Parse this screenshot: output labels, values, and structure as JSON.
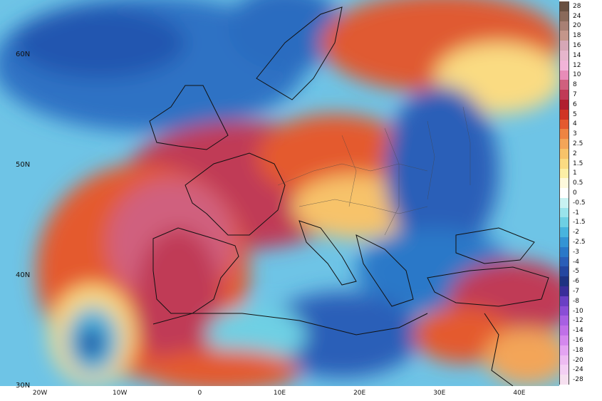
{
  "map": {
    "lat_labels": [
      {
        "text": "60N",
        "lat": 60
      },
      {
        "text": "50N",
        "lat": 50
      },
      {
        "text": "40N",
        "lat": 40
      },
      {
        "text": "30N",
        "lat": 30
      }
    ],
    "lon_labels": [
      {
        "text": "20W",
        "lon": -20
      },
      {
        "text": "10W",
        "lon": -10
      },
      {
        "text": "0",
        "lon": 0
      },
      {
        "text": "10E",
        "lon": 10
      },
      {
        "text": "20E",
        "lon": 20
      },
      {
        "text": "30E",
        "lon": 30
      },
      {
        "text": "40E",
        "lon": 40
      }
    ]
  },
  "colorbar": {
    "levels": [
      "28",
      "24",
      "20",
      "18",
      "16",
      "14",
      "12",
      "10",
      "8",
      "7",
      "6",
      "5",
      "4",
      "3",
      "2.5",
      "2",
      "1.5",
      "1",
      "0.5",
      "0",
      "-0.5",
      "-1",
      "-1.5",
      "-2",
      "-2.5",
      "-3",
      "-4",
      "-5",
      "-6",
      "-7",
      "-8",
      "-10",
      "-12",
      "-14",
      "-16",
      "-18",
      "-20",
      "-24",
      "-28"
    ],
    "colors": [
      "#6a5040",
      "#8a6a5a",
      "#a88074",
      "#c4968a",
      "#d6a7b6",
      "#e6b6cc",
      "#f2b4d8",
      "#e88cb8",
      "#d0607e",
      "#c03a56",
      "#b01e2e",
      "#d03424",
      "#e45a2e",
      "#ee8442",
      "#f3a558",
      "#f7c36a",
      "#fadb82",
      "#fcefa6",
      "#fef9dc",
      "#ffffff",
      "#c8f2f2",
      "#9ae4ec",
      "#6ed0e4",
      "#48b4de",
      "#3494d4",
      "#2a78c8",
      "#2a5eb8",
      "#2446a0",
      "#1e3282",
      "#3a2e9a",
      "#6a40c4",
      "#8a4ed6",
      "#a860e2",
      "#c070e8",
      "#d488ee",
      "#e4a4f2",
      "#eebcf2",
      "#f4d0f4",
      "#f6e0f0"
    ]
  }
}
